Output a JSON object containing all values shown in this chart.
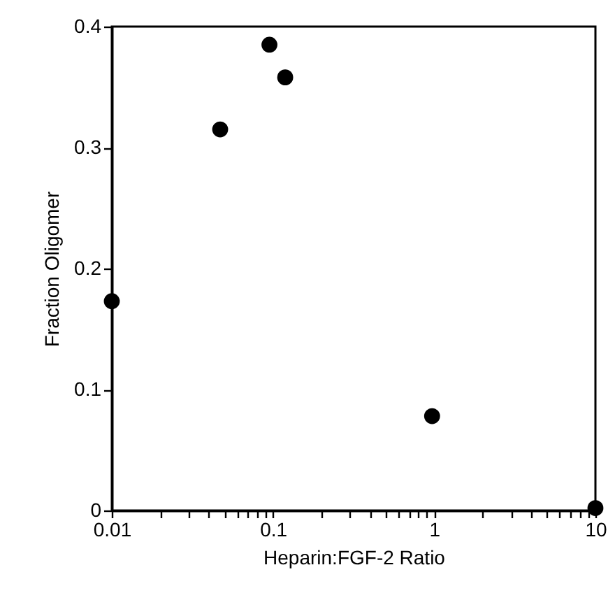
{
  "chart_data": {
    "type": "scatter",
    "xlabel": "Heparin:FGF-2 Ratio",
    "ylabel": "Fraction    Oligomer",
    "x": [
      0.01,
      0.047,
      0.095,
      0.119,
      0.97,
      10
    ],
    "series": [
      {
        "color": "#000000",
        "values": [
          0.173,
          0.315,
          0.385,
          0.358,
          0.078,
          0.002
        ]
      }
    ],
    "log": "x",
    "xlim": [
      0.01,
      10
    ],
    "xticks": [
      0.01,
      {
        "value": 0.02,
        "label": null
      },
      {
        "value": 0.03,
        "label": null
      },
      {
        "value": 0.04,
        "label": null
      },
      {
        "value": 0.05,
        "label": null
      },
      {
        "value": 0.06,
        "label": null
      },
      {
        "value": 0.07,
        "label": null
      },
      {
        "value": 0.08,
        "label": null
      },
      {
        "value": 0.09,
        "label": null
      },
      0.1,
      {
        "value": 0.2,
        "label": null
      },
      {
        "value": 0.3,
        "label": null
      },
      {
        "value": 0.4,
        "label": null
      },
      {
        "value": 0.5,
        "label": null
      },
      {
        "value": 0.6,
        "label": null
      },
      {
        "value": 0.7,
        "label": null
      },
      {
        "value": 0.8,
        "label": null
      },
      {
        "value": 0.9,
        "label": null
      },
      1,
      {
        "value": 2,
        "label": null
      },
      {
        "value": 3,
        "label": null
      },
      {
        "value": 4,
        "label": null
      },
      {
        "value": 5,
        "label": null
      },
      {
        "value": 6,
        "label": null
      },
      {
        "value": 7,
        "label": null
      },
      {
        "value": 8,
        "label": null
      },
      {
        "value": 9,
        "label": null
      },
      10
    ],
    "ylim": [
      0,
      0.4
    ],
    "yticks": [
      0,
      0.1,
      0.2,
      0.3,
      0.4
    ],
    "grid": false,
    "marker": "circle"
  }
}
